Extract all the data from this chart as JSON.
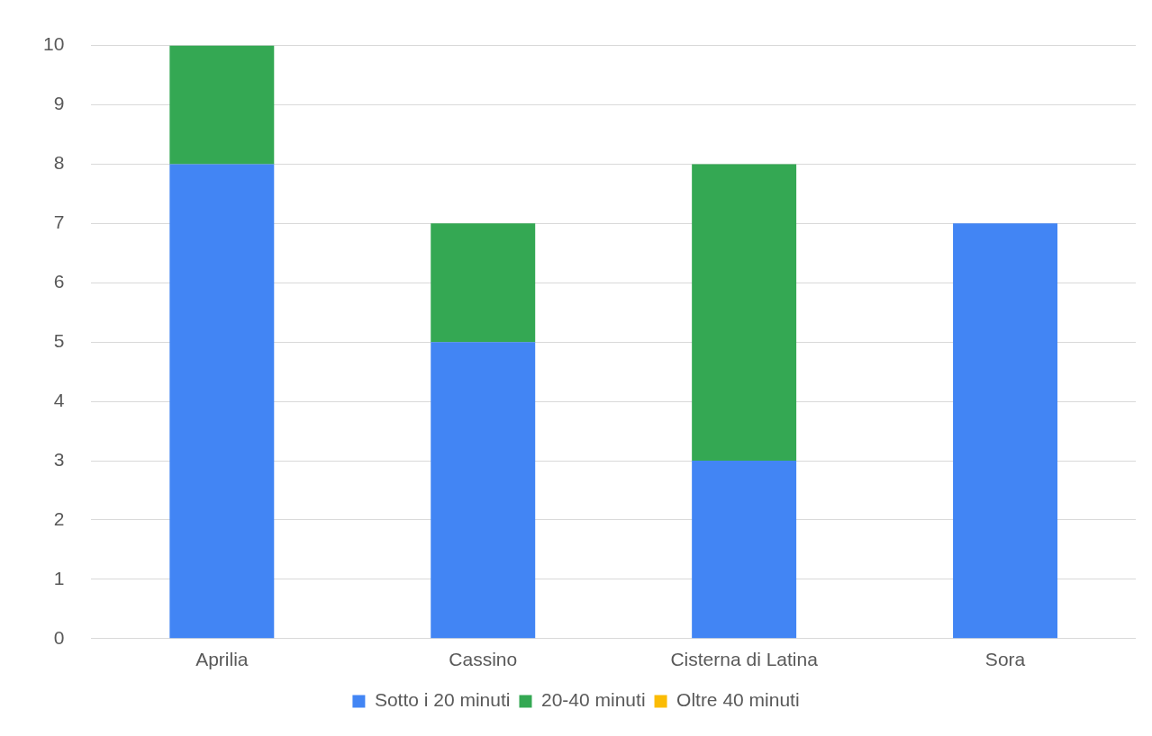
{
  "chart_data": {
    "type": "bar",
    "stacked": true,
    "categories": [
      "Aprilia",
      "Cassino",
      "Cisterna di Latina",
      "Sora"
    ],
    "series": [
      {
        "name": "Sotto i 20 minuti",
        "color": "#4285f4",
        "values": [
          8,
          5,
          3,
          7
        ]
      },
      {
        "name": "20-40 minuti",
        "color": "#34a853",
        "values": [
          2,
          2,
          5,
          0
        ]
      },
      {
        "name": "Oltre 40 minuti",
        "color": "#fbbc04",
        "values": [
          0,
          0,
          0,
          0
        ]
      }
    ],
    "ylim": [
      0,
      10
    ],
    "yticks": [
      0,
      1,
      2,
      3,
      4,
      5,
      6,
      7,
      8,
      9,
      10
    ],
    "grid": "y",
    "legend": "bottom"
  }
}
